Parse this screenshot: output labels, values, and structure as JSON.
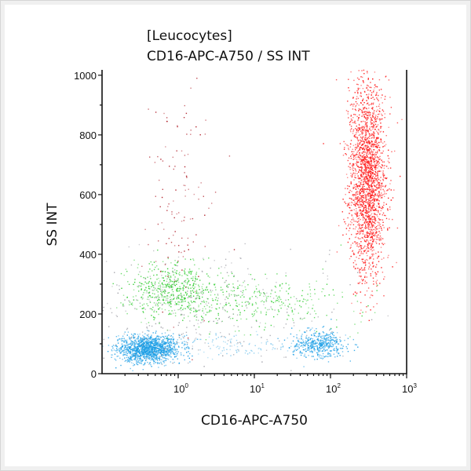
{
  "chart_data": {
    "type": "scatter",
    "title": "[Leucocytes]",
    "subtitle": "CD16-APC-A750 / SS INT",
    "xlabel": "CD16-APC-A750",
    "ylabel": "SS INT",
    "xscale": "log",
    "xlim": [
      0.1,
      1000
    ],
    "ylim": [
      0,
      1020
    ],
    "x_ticks": [
      {
        "value": 1,
        "base": "10",
        "exp": "0"
      },
      {
        "value": 10,
        "base": "10",
        "exp": "1"
      },
      {
        "value": 100,
        "base": "10",
        "exp": "2"
      },
      {
        "value": 1000,
        "base": "10",
        "exp": "3"
      }
    ],
    "y_ticks": [
      "0",
      "200",
      "400",
      "600",
      "800",
      "1000"
    ],
    "y_tick_values": [
      0,
      200,
      400,
      600,
      800,
      1000
    ],
    "grid": false,
    "legend": "none",
    "populations": [
      {
        "color": "#1e9fe6",
        "x_center": 0.4,
        "x_sd_decades": 0.2,
        "y_center": 85,
        "y_sd": 22,
        "count": 1400
      },
      {
        "color": "#1e9fe6",
        "x_center": 70,
        "x_sd_decades": 0.18,
        "y_center": 100,
        "y_sd": 22,
        "count": 450
      },
      {
        "color": "#7fc8ee",
        "x_center": 5,
        "x_sd_decades": 0.5,
        "y_center": 95,
        "y_sd": 20,
        "count": 120
      },
      {
        "color": "#2ecc2e",
        "x_center": 0.9,
        "x_sd_decades": 0.3,
        "y_center": 280,
        "y_sd": 45,
        "count": 550
      },
      {
        "color": "#3fd13f",
        "x_center": 12,
        "x_sd_decades": 0.55,
        "y_center": 240,
        "y_sd": 45,
        "count": 300
      },
      {
        "color": "#ff1a1a",
        "x_center": 300,
        "x_sd_decades": 0.12,
        "y_center": 650,
        "y_sd": 160,
        "count": 2200
      },
      {
        "color": "#b0202a",
        "x_center": 1.0,
        "x_sd_decades": 0.25,
        "y_center": 600,
        "y_sd": 220,
        "count": 120
      },
      {
        "color": "#a0a0a8",
        "x_center": 1.5,
        "x_sd_decades": 0.9,
        "y_center": 220,
        "y_sd": 90,
        "count": 350
      }
    ]
  }
}
